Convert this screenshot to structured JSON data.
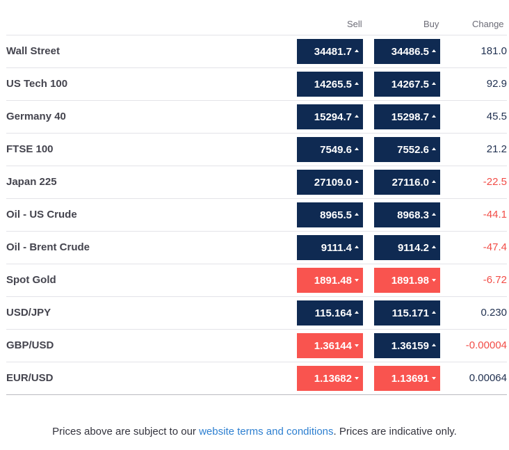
{
  "header": {
    "sell": "Sell",
    "buy": "Buy",
    "change": "Change"
  },
  "rows": [
    {
      "name": "Wall Street",
      "sell": "34481.7",
      "buy": "34486.5",
      "sell_dir": "up",
      "buy_dir": "up",
      "change": "181.0",
      "change_sign": "pos"
    },
    {
      "name": "US Tech 100",
      "sell": "14265.5",
      "buy": "14267.5",
      "sell_dir": "up",
      "buy_dir": "up",
      "change": "92.9",
      "change_sign": "pos"
    },
    {
      "name": "Germany 40",
      "sell": "15294.7",
      "buy": "15298.7",
      "sell_dir": "up",
      "buy_dir": "up",
      "change": "45.5",
      "change_sign": "pos"
    },
    {
      "name": "FTSE 100",
      "sell": "7549.6",
      "buy": "7552.6",
      "sell_dir": "up",
      "buy_dir": "up",
      "change": "21.2",
      "change_sign": "pos"
    },
    {
      "name": "Japan 225",
      "sell": "27109.0",
      "buy": "27116.0",
      "sell_dir": "up",
      "buy_dir": "up",
      "change": "-22.5",
      "change_sign": "neg"
    },
    {
      "name": "Oil - US Crude",
      "sell": "8965.5",
      "buy": "8968.3",
      "sell_dir": "up",
      "buy_dir": "up",
      "change": "-44.1",
      "change_sign": "neg"
    },
    {
      "name": "Oil - Brent Crude",
      "sell": "9111.4",
      "buy": "9114.2",
      "sell_dir": "up",
      "buy_dir": "up",
      "change": "-47.4",
      "change_sign": "neg"
    },
    {
      "name": "Spot Gold",
      "sell": "1891.48",
      "buy": "1891.98",
      "sell_dir": "down",
      "buy_dir": "down",
      "change": "-6.72",
      "change_sign": "neg"
    },
    {
      "name": "USD/JPY",
      "sell": "115.164",
      "buy": "115.171",
      "sell_dir": "up",
      "buy_dir": "up",
      "change": "0.230",
      "change_sign": "pos"
    },
    {
      "name": "GBP/USD",
      "sell": "1.36144",
      "buy": "1.36159",
      "sell_dir": "down",
      "buy_dir": "up",
      "change": "-0.00004",
      "change_sign": "neg"
    },
    {
      "name": "EUR/USD",
      "sell": "1.13682",
      "buy": "1.13691",
      "sell_dir": "down",
      "buy_dir": "down",
      "change": "0.00064",
      "change_sign": "pos"
    }
  ],
  "footer": {
    "prefix": "Prices above are subject to our ",
    "link": "website terms and conditions",
    "suffix": ". Prices are indicative only."
  },
  "colors": {
    "up": "#0f2a52",
    "down": "#f9544f",
    "link": "#2d7fd0",
    "negative": "#f24c46"
  }
}
